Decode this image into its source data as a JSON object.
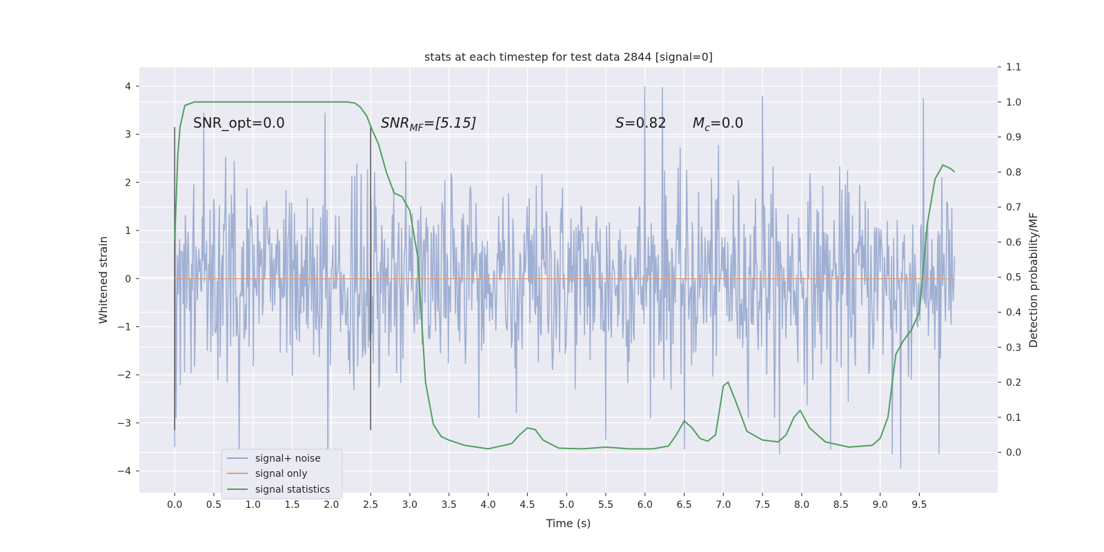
{
  "chart_data": {
    "type": "line",
    "title": "stats at each timestep for test data 2844 [signal=0]",
    "xlabel": "Time (s)",
    "ylabel": "Whitened strain",
    "y2label": "Detection probability/MF",
    "xlim": [
      -0.45,
      10.5
    ],
    "ylim": [
      -4.45,
      4.4
    ],
    "y2lim": [
      -0.115,
      1.1
    ],
    "x_ticks": [
      "0.0",
      "0.5",
      "1.0",
      "1.5",
      "2.0",
      "2.5",
      "3.0",
      "3.5",
      "4.0",
      "4.5",
      "5.0",
      "5.5",
      "6.0",
      "6.5",
      "7.0",
      "7.5",
      "8.0",
      "8.5",
      "9.0",
      "9.5"
    ],
    "y_ticks": [
      "4",
      "3",
      "2",
      "1",
      "0",
      "−1",
      "−2",
      "−3",
      "−4"
    ],
    "y2_ticks": [
      "1.1",
      "1.0",
      "0.9",
      "0.8",
      "0.7",
      "0.6",
      "0.5",
      "0.4",
      "0.3",
      "0.2",
      "0.1",
      "0.0"
    ],
    "grid": true,
    "legend_position": "lower-left",
    "annotations": {
      "snr_opt": "SNR_opt=0.0",
      "snr_mf_sym": "SNR",
      "snr_mf_sub": "MF",
      "snr_mf_val": "=[5.15]",
      "s_sym": "S",
      "s_val": "=0.82",
      "mc_sym": "M",
      "mc_sub": "c",
      "mc_val": "=0.0"
    },
    "vertical_markers": [
      {
        "x": 0.0,
        "y_from": -3.15,
        "y_to": 3.15
      },
      {
        "x": 2.5,
        "y_from": -3.15,
        "y_to": 3.15
      }
    ],
    "series": [
      {
        "name": "signal+ noise",
        "color": "#92a4cd",
        "kind": "noise",
        "x_range": [
          0.0,
          9.95
        ],
        "typical_std": 1.0,
        "extremes": [
          [
            0.37,
            3.45
          ],
          [
            1.92,
            3.45
          ],
          [
            6.0,
            4.0
          ],
          [
            6.22,
            3.98
          ],
          [
            7.5,
            3.8
          ],
          [
            9.55,
            3.75
          ],
          [
            0.0,
            -3.5
          ],
          [
            0.82,
            -3.9
          ],
          [
            1.95,
            -4.05
          ],
          [
            5.5,
            -3.35
          ],
          [
            6.5,
            -3.55
          ],
          [
            7.72,
            -3.65
          ],
          [
            8.37,
            -3.55
          ],
          [
            9.15,
            -3.65
          ],
          [
            9.26,
            -3.95
          ],
          [
            9.75,
            -3.65
          ]
        ]
      },
      {
        "name": "signal only",
        "color": "#e29e7d",
        "x": [
          0.0,
          9.95
        ],
        "y": [
          0.0,
          0.0
        ]
      },
      {
        "name": "signal statistics",
        "color": "#4e9f5d",
        "axis": "right",
        "x": [
          0.0,
          0.04,
          0.07,
          0.13,
          0.25,
          0.5,
          1.0,
          1.5,
          2.0,
          2.2,
          2.3,
          2.37,
          2.45,
          2.52,
          2.6,
          2.7,
          2.8,
          2.9,
          3.0,
          3.1,
          3.2,
          3.3,
          3.4,
          3.5,
          3.7,
          4.0,
          4.3,
          4.4,
          4.5,
          4.6,
          4.7,
          4.9,
          5.2,
          5.5,
          5.8,
          6.1,
          6.3,
          6.4,
          6.5,
          6.6,
          6.7,
          6.8,
          6.9,
          7.0,
          7.06,
          7.15,
          7.3,
          7.5,
          7.7,
          7.8,
          7.9,
          7.98,
          8.1,
          8.3,
          8.6,
          8.9,
          9.0,
          9.1,
          9.2,
          9.3,
          9.4,
          9.5,
          9.6,
          9.7,
          9.8,
          9.9,
          9.95
        ],
        "y": [
          0.6,
          0.85,
          0.93,
          0.99,
          1.0,
          1.0,
          1.0,
          1.0,
          1.0,
          1.0,
          0.997,
          0.985,
          0.96,
          0.92,
          0.88,
          0.8,
          0.74,
          0.73,
          0.69,
          0.56,
          0.2,
          0.08,
          0.045,
          0.035,
          0.02,
          0.01,
          0.025,
          0.05,
          0.07,
          0.065,
          0.035,
          0.012,
          0.01,
          0.015,
          0.01,
          0.01,
          0.018,
          0.05,
          0.09,
          0.07,
          0.04,
          0.032,
          0.05,
          0.19,
          0.2,
          0.15,
          0.06,
          0.035,
          0.03,
          0.05,
          0.1,
          0.12,
          0.07,
          0.03,
          0.015,
          0.02,
          0.04,
          0.1,
          0.28,
          0.32,
          0.35,
          0.4,
          0.65,
          0.78,
          0.82,
          0.81,
          0.8
        ]
      }
    ]
  }
}
